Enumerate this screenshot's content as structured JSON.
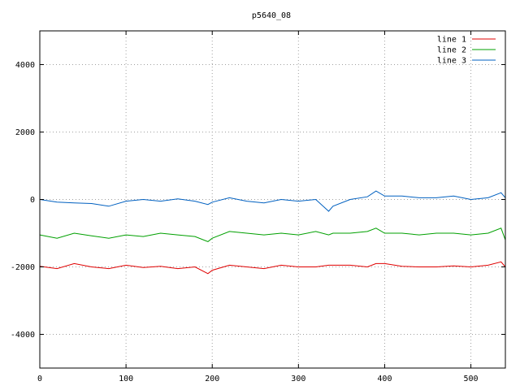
{
  "chart_data": {
    "type": "line",
    "title": "p5640_08",
    "xlabel": "",
    "ylabel": "",
    "xlim": [
      0,
      540
    ],
    "ylim": [
      -5000,
      5000
    ],
    "x_ticks": [
      0,
      100,
      200,
      300,
      400,
      500
    ],
    "y_ticks": [
      -4000,
      -2000,
      0,
      2000,
      4000
    ],
    "grid": true,
    "legend_position": "top-right",
    "x": [
      0,
      20,
      40,
      60,
      80,
      100,
      120,
      140,
      160,
      180,
      195,
      200,
      220,
      240,
      260,
      280,
      300,
      320,
      335,
      340,
      360,
      380,
      390,
      400,
      420,
      440,
      460,
      480,
      500,
      520,
      535,
      540
    ],
    "series": [
      {
        "name": "line 1",
        "color": "#e00000",
        "values": [
          -1980,
          -2050,
          -1900,
          -2000,
          -2050,
          -1950,
          -2020,
          -1980,
          -2050,
          -2000,
          -2200,
          -2100,
          -1950,
          -2000,
          -2050,
          -1950,
          -2000,
          -2000,
          -1950,
          -1950,
          -1950,
          -2000,
          -1900,
          -1900,
          -1980,
          -2000,
          -2000,
          -1970,
          -2000,
          -1950,
          -1850,
          -2000
        ]
      },
      {
        "name": "line 2",
        "color": "#00a000",
        "values": [
          -1050,
          -1150,
          -1000,
          -1080,
          -1150,
          -1050,
          -1100,
          -1000,
          -1050,
          -1100,
          -1250,
          -1150,
          -950,
          -1000,
          -1050,
          -1000,
          -1050,
          -950,
          -1050,
          -1000,
          -1000,
          -950,
          -850,
          -1000,
          -1000,
          -1050,
          -1000,
          -1000,
          -1050,
          -1000,
          -850,
          -1200
        ]
      },
      {
        "name": "line 3",
        "color": "#0060c0",
        "values": [
          0,
          -80,
          -100,
          -120,
          -200,
          -50,
          0,
          -50,
          20,
          -50,
          -150,
          -80,
          50,
          -50,
          -100,
          0,
          -50,
          0,
          -350,
          -200,
          0,
          80,
          250,
          100,
          100,
          50,
          50,
          100,
          0,
          50,
          200,
          50
        ]
      }
    ]
  }
}
